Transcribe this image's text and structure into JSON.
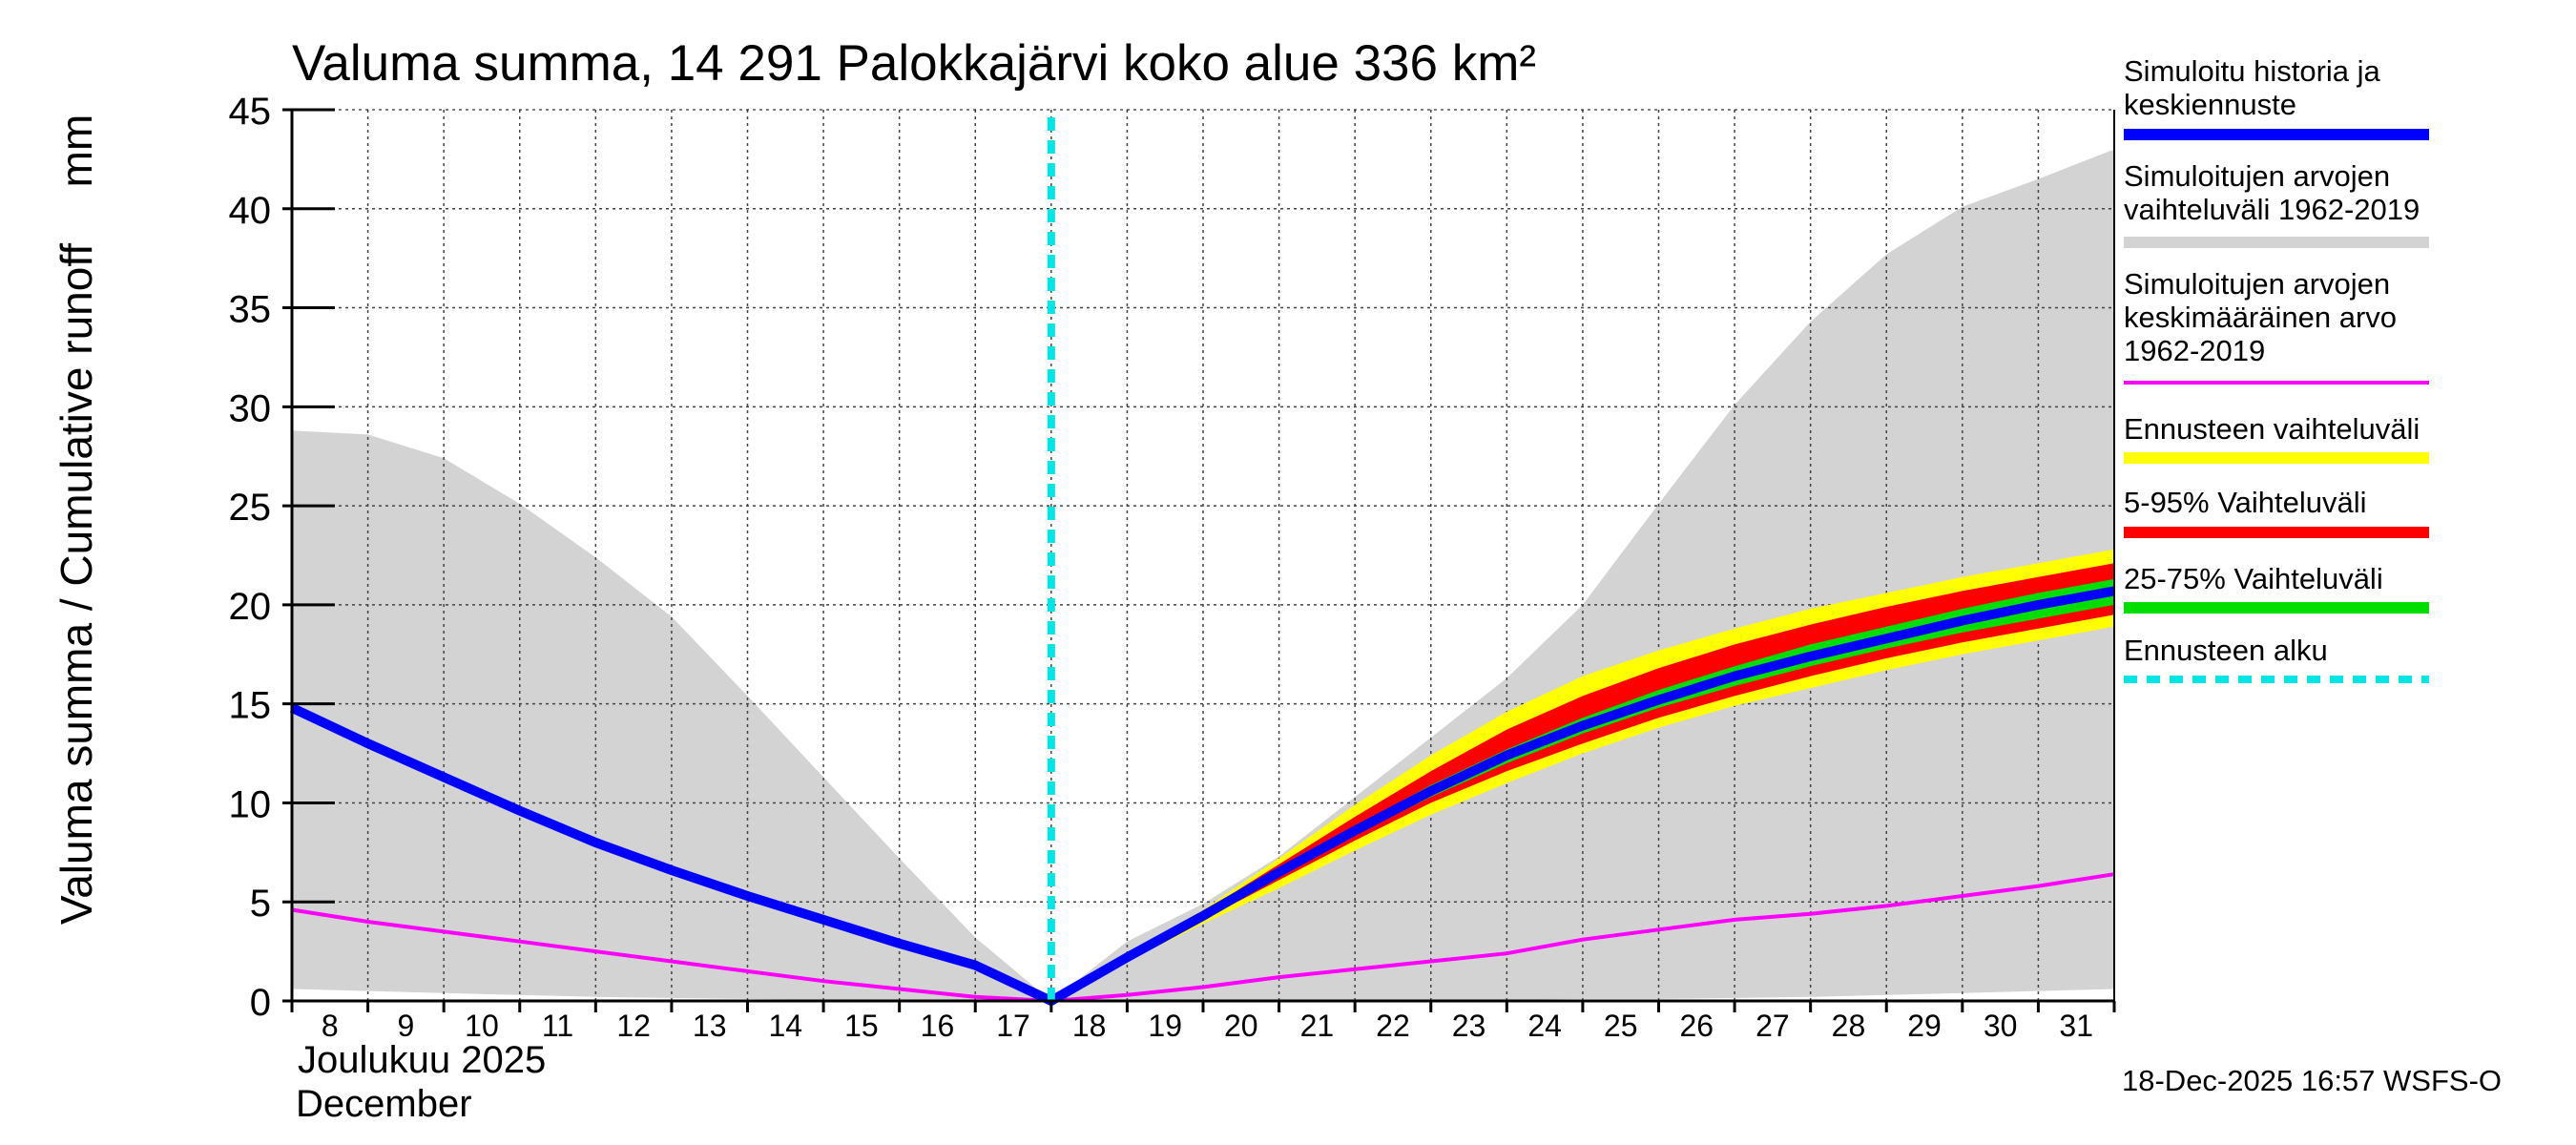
{
  "chart_data": {
    "type": "area",
    "title": "Valuma summa, 14 291 Palokkajärvi koko alue 336 km²",
    "ylabel": "Valuma summa / Cumulative runoff",
    "yunit": "mm",
    "xlabel_fi": "Joulukuu  2025",
    "xlabel_en": "December",
    "timestamp": "18-Dec-2025 16:57 WSFS-O",
    "ylim": [
      0,
      45
    ],
    "yticks": [
      0,
      5,
      10,
      15,
      20,
      25,
      30,
      35,
      40,
      45
    ],
    "xlim": [
      8,
      32
    ],
    "xticks": [
      8,
      9,
      10,
      11,
      12,
      13,
      14,
      15,
      16,
      17,
      18,
      19,
      20,
      21,
      22,
      23,
      24,
      25,
      26,
      27,
      28,
      29,
      30,
      31
    ],
    "forecast_start": 18,
    "grid": true,
    "series": {
      "sim_range": {
        "name": "Simuloitujen arvojen vaihteluväli 1962-2019",
        "color": "#d3d3d3",
        "x": [
          8,
          9,
          10,
          11,
          12,
          13,
          14,
          15,
          16,
          17,
          18,
          19,
          20,
          21,
          22,
          23,
          24,
          25,
          26,
          27,
          28,
          29,
          30,
          31,
          32
        ],
        "upper": [
          28.8,
          28.6,
          27.4,
          25.1,
          22.4,
          19.4,
          15.4,
          11.3,
          7.2,
          3.2,
          0,
          3.0,
          4.9,
          7.3,
          10.3,
          13.3,
          16.3,
          20.0,
          25.1,
          30.1,
          34.3,
          37.7,
          40.1,
          41.5,
          43.0
        ],
        "lower": [
          0.6,
          0.5,
          0.4,
          0.3,
          0.2,
          0.15,
          0.1,
          0.05,
          0.02,
          0,
          0,
          0.05,
          0.05,
          0.05,
          0.05,
          0.05,
          0.05,
          0.1,
          0.1,
          0.15,
          0.2,
          0.3,
          0.4,
          0.5,
          0.6
        ]
      },
      "forecast_range": {
        "name": "Ennusteen vaihteluväli",
        "color": "#ffff00",
        "x": [
          18,
          19,
          20,
          21,
          22,
          23,
          24,
          25,
          26,
          27,
          28,
          29,
          30,
          31,
          32
        ],
        "upper": [
          0,
          2.4,
          4.6,
          7.2,
          9.9,
          12.4,
          14.6,
          16.4,
          17.7,
          18.8,
          19.8,
          20.6,
          21.4,
          22.1,
          22.8
        ],
        "lower": [
          0,
          2.0,
          3.9,
          5.7,
          7.6,
          9.4,
          11.0,
          12.5,
          13.8,
          14.9,
          15.8,
          16.7,
          17.5,
          18.2,
          18.9
        ]
      },
      "p5_95": {
        "name": "5-95% Vaihteluväli",
        "color": "#ff0000",
        "x": [
          18,
          19,
          20,
          21,
          22,
          23,
          24,
          25,
          26,
          27,
          28,
          29,
          30,
          31,
          32
        ],
        "upper": [
          0,
          2.3,
          4.5,
          6.9,
          9.3,
          11.6,
          13.7,
          15.4,
          16.8,
          18.0,
          19.0,
          19.9,
          20.7,
          21.4,
          22.1
        ],
        "lower": [
          0,
          2.1,
          4.1,
          6.1,
          8.1,
          10.0,
          11.6,
          13.0,
          14.3,
          15.4,
          16.4,
          17.3,
          18.1,
          18.8,
          19.5
        ]
      },
      "p25_75": {
        "name": "25-75% Vaihteluväli",
        "color": "#00dd00",
        "x": [
          18,
          19,
          20,
          21,
          22,
          23,
          24,
          25,
          26,
          27,
          28,
          29,
          30,
          31,
          32
        ],
        "upper": [
          0,
          2.25,
          4.35,
          6.6,
          8.8,
          10.9,
          12.7,
          14.3,
          15.7,
          16.9,
          18.0,
          18.9,
          19.8,
          20.6,
          21.3
        ],
        "lower": [
          0,
          2.15,
          4.2,
          6.3,
          8.4,
          10.3,
          12.0,
          13.5,
          14.8,
          15.9,
          16.9,
          17.8,
          18.6,
          19.3,
          20.0
        ]
      },
      "sim_mean": {
        "name": "Simuloitujen arvojen keskimääräinen arvo 1962-2019",
        "color": "#ff00ff",
        "x": [
          8,
          9,
          10,
          11,
          12,
          13,
          14,
          15,
          16,
          17,
          18,
          19,
          20,
          21,
          22,
          23,
          24,
          25,
          26,
          27,
          28,
          29,
          30,
          31,
          32
        ],
        "values": [
          4.6,
          4.0,
          3.5,
          3.0,
          2.5,
          2.0,
          1.5,
          1.0,
          0.6,
          0.2,
          0,
          0.3,
          0.7,
          1.2,
          1.6,
          2.0,
          2.4,
          3.1,
          3.6,
          4.1,
          4.4,
          4.8,
          5.3,
          5.8,
          6.4
        ]
      },
      "history_forecast": {
        "name": "Simuloitu historia ja keskiennuste",
        "color": "#0000ff",
        "x": [
          8,
          9,
          10,
          11,
          12,
          13,
          14,
          15,
          16,
          17,
          18,
          19,
          20,
          21,
          22,
          23,
          24,
          25,
          26,
          27,
          28,
          29,
          30,
          31,
          32
        ],
        "values": [
          14.8,
          13.0,
          11.3,
          9.6,
          8.0,
          6.6,
          5.3,
          4.1,
          2.9,
          1.8,
          0,
          2.2,
          4.3,
          6.5,
          8.6,
          10.6,
          12.4,
          13.9,
          15.2,
          16.4,
          17.4,
          18.3,
          19.2,
          20.0,
          20.7
        ]
      }
    },
    "legend": [
      {
        "key": "history",
        "text": [
          "Simuloitu historia ja",
          "keskiennuste"
        ],
        "color": "#0000ff",
        "style": "solid"
      },
      {
        "key": "range",
        "text": [
          "Simuloitujen arvojen",
          "vaihteluväli 1962-2019"
        ],
        "color": "#d3d3d3",
        "style": "solid"
      },
      {
        "key": "mean",
        "text": [
          "Simuloitujen arvojen",
          "keskimääräinen arvo",
          "   1962-2019"
        ],
        "color": "#ff00ff",
        "style": "thin"
      },
      {
        "key": "forecast-range",
        "text": [
          "Ennusteen vaihteluväli"
        ],
        "color": "#ffff00",
        "style": "solid"
      },
      {
        "key": "p5-95",
        "text": [
          "5-95% Vaihteluväli"
        ],
        "color": "#ff0000",
        "style": "solid"
      },
      {
        "key": "p25-75",
        "text": [
          "25-75% Vaihteluväli"
        ],
        "color": "#00dd00",
        "style": "solid"
      },
      {
        "key": "forecast-start",
        "text": [
          "Ennusteen alku"
        ],
        "color": "#00e5e5",
        "style": "dashed"
      }
    ]
  }
}
